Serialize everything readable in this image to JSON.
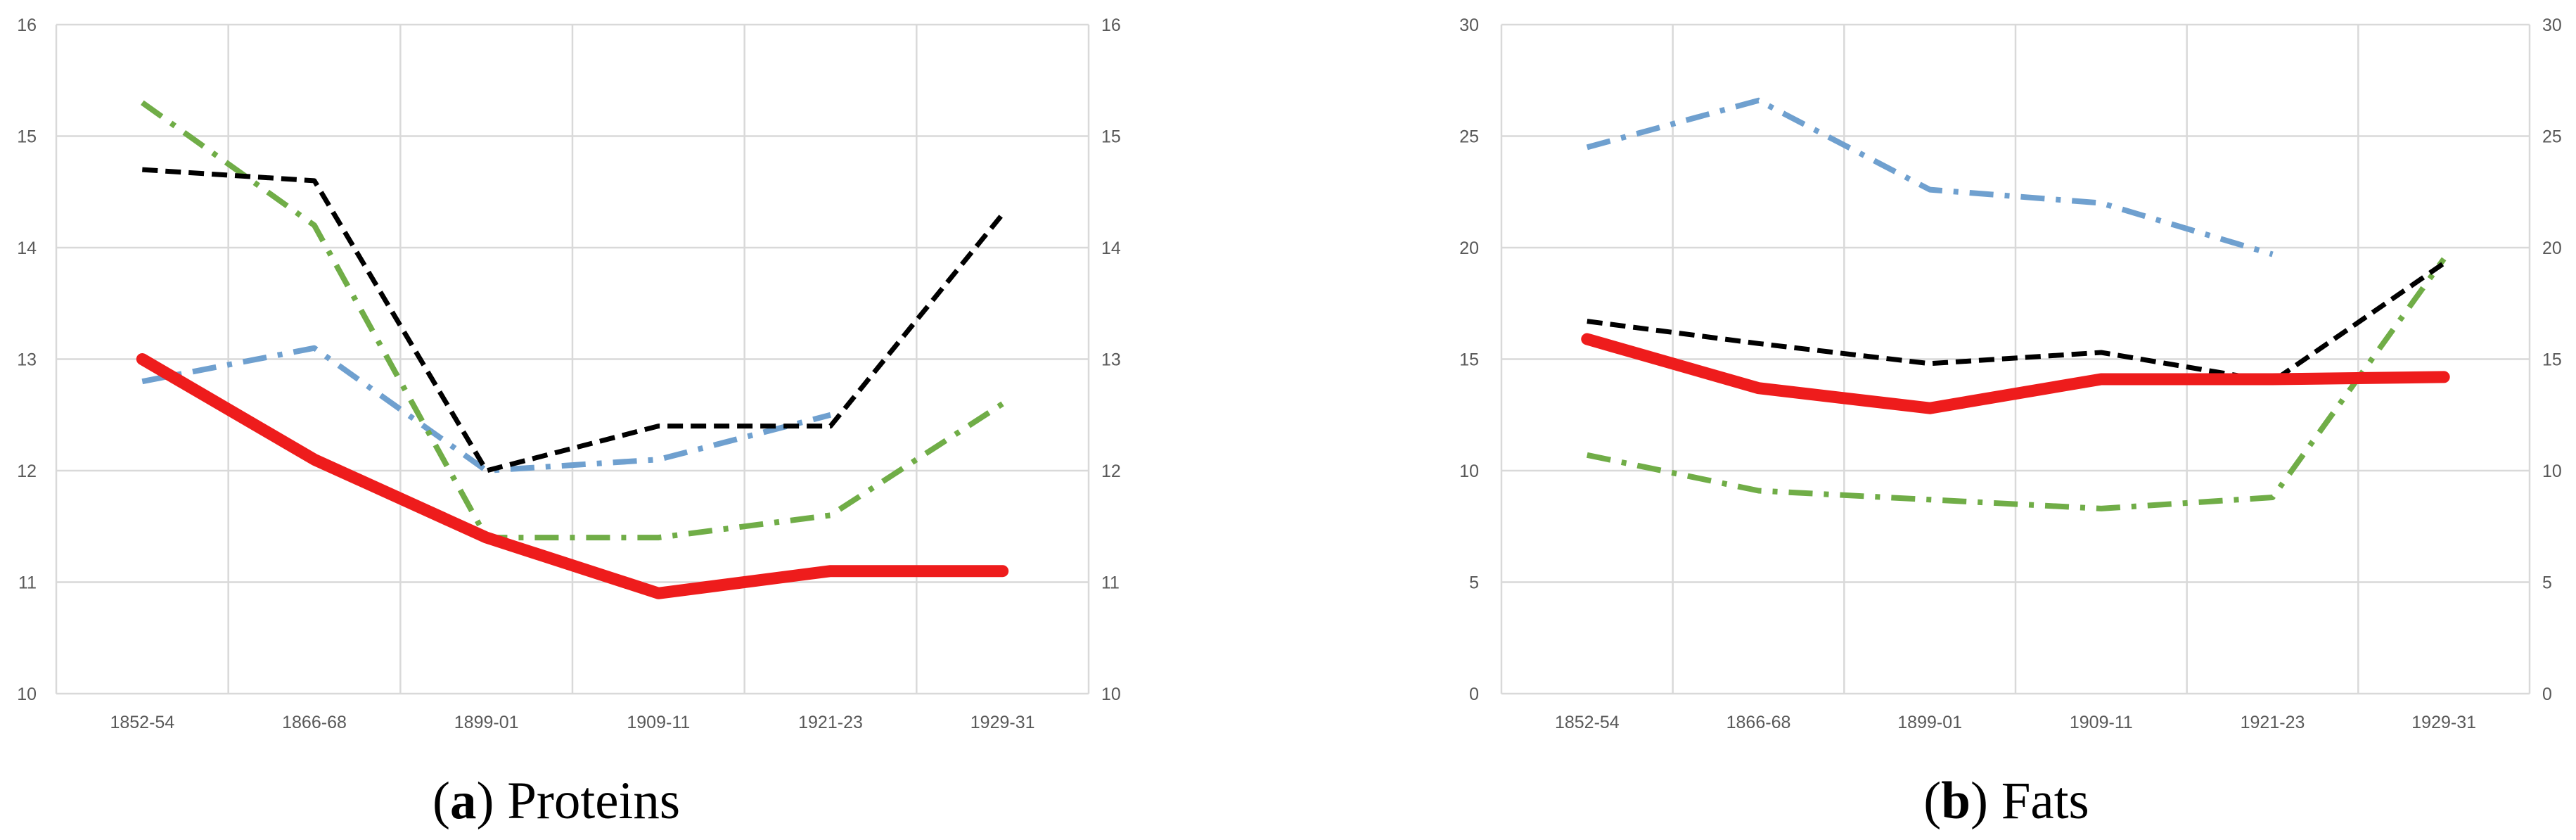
{
  "chart_data": [
    {
      "type": "line",
      "categories": [
        "1852-54",
        "1866-68",
        "1899-01",
        "1909-11",
        "1921-23",
        "1929-31"
      ],
      "ylim": [
        10,
        16
      ],
      "yticks": [
        "10",
        "11",
        "12",
        "13",
        "14",
        "15",
        "16"
      ],
      "secondary_yticks": [
        "10",
        "11",
        "12",
        "13",
        "14",
        "15",
        "16"
      ],
      "grid": true,
      "caption_letter": "a",
      "caption_text": "Proteins",
      "series": [
        {
          "values": [
            12.8,
            13.1,
            12.0,
            12.1,
            12.5,
            null
          ],
          "color": "#6fa0cf",
          "style": "dash-dot"
        },
        {
          "values": [
            15.3,
            14.2,
            11.4,
            11.4,
            11.6,
            12.6
          ],
          "color": "#70ad47",
          "style": "dash-dot"
        },
        {
          "values": [
            14.7,
            14.6,
            12.0,
            12.4,
            12.4,
            14.3
          ],
          "color": "#000000",
          "style": "dashed"
        },
        {
          "values": [
            13.0,
            12.1,
            11.4,
            10.9,
            11.1,
            11.1
          ],
          "color": "#ee1c1c",
          "style": "solid-thick"
        }
      ]
    },
    {
      "type": "line",
      "categories": [
        "1852-54",
        "1866-68",
        "1899-01",
        "1909-11",
        "1921-23",
        "1929-31"
      ],
      "ylim": [
        0,
        30
      ],
      "yticks": [
        "0",
        "5",
        "10",
        "15",
        "20",
        "25",
        "30"
      ],
      "secondary_yticks": [
        "0",
        "5",
        "10",
        "15",
        "20",
        "25",
        "30"
      ],
      "grid": true,
      "caption_letter": "b",
      "caption_text": "Fats",
      "series": [
        {
          "values": [
            24.5,
            26.6,
            22.6,
            22.0,
            19.7,
            null
          ],
          "color": "#6fa0cf",
          "style": "dash-dot"
        },
        {
          "values": [
            10.7,
            9.1,
            8.7,
            8.3,
            8.8,
            19.5
          ],
          "color": "#70ad47",
          "style": "dash-dot"
        },
        {
          "values": [
            16.7,
            15.7,
            14.8,
            15.3,
            14.0,
            19.3
          ],
          "color": "#000000",
          "style": "dashed"
        },
        {
          "values": [
            15.9,
            13.7,
            12.8,
            14.1,
            14.1,
            14.2
          ],
          "color": "#ee1c1c",
          "style": "solid-thick"
        }
      ]
    }
  ]
}
